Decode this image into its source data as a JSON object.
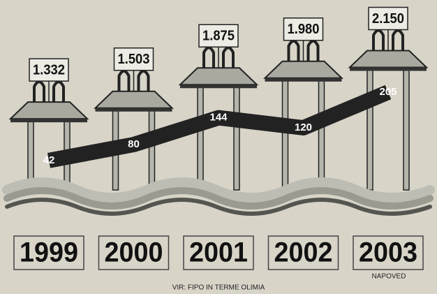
{
  "chart_data": {
    "type": "bar",
    "categories": [
      "1999",
      "2000",
      "2001",
      "2002",
      "2003"
    ],
    "series": [
      {
        "color": "#a9a9a0",
        "values": [
          1332,
          1503,
          1875,
          1980,
          2150
        ],
        "value_labels": [
          "1.332",
          "1.503",
          "1.875",
          "1.980",
          "2.150"
        ]
      },
      {
        "color": "#222222",
        "values": [
          42,
          80,
          144,
          120,
          205
        ]
      }
    ],
    "annotations": [
      "NAPOVED"
    ],
    "source": "VIR: FIPO IN TERME OLIMIA"
  }
}
